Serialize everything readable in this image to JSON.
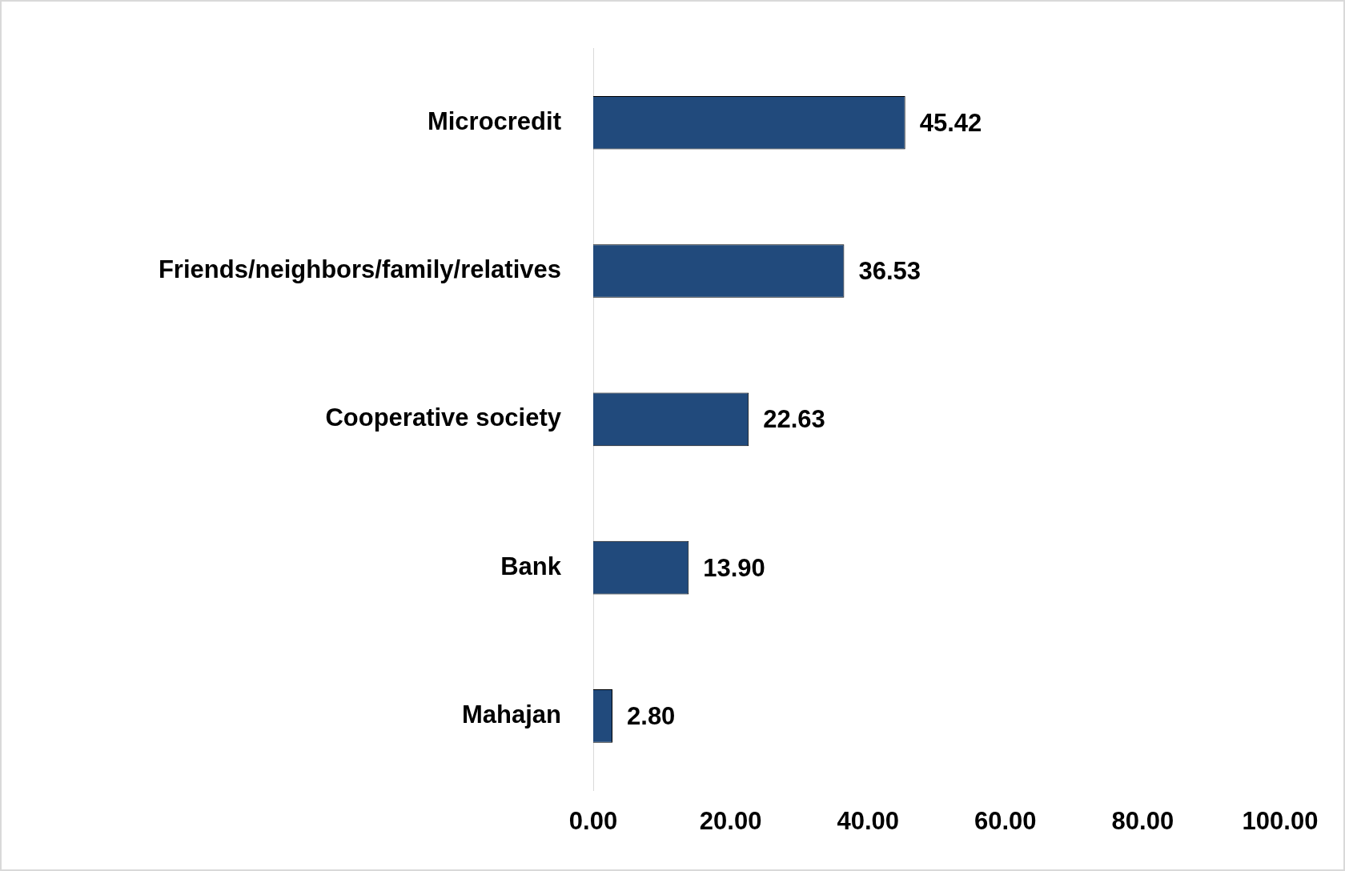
{
  "chart_data": {
    "type": "bar",
    "orientation": "horizontal",
    "categories": [
      "Microcredit",
      "Friends/neighbors/family/relatives",
      "Cooperative society",
      "Bank",
      "Mahajan"
    ],
    "values": [
      45.42,
      36.53,
      22.63,
      13.9,
      2.8
    ],
    "value_labels": [
      "45.42",
      "36.53",
      "22.63",
      "13.90",
      "2.80"
    ],
    "color": "#214a7c",
    "xlim": [
      0,
      100
    ],
    "xticks": [
      {
        "value": 0,
        "label": "0.00"
      },
      {
        "value": 20,
        "label": "20.00"
      },
      {
        "value": 40,
        "label": "40.00"
      },
      {
        "value": 60,
        "label": "60.00"
      },
      {
        "value": 80,
        "label": "80.00"
      },
      {
        "value": 100,
        "label": "100.00"
      }
    ],
    "grid": false
  }
}
